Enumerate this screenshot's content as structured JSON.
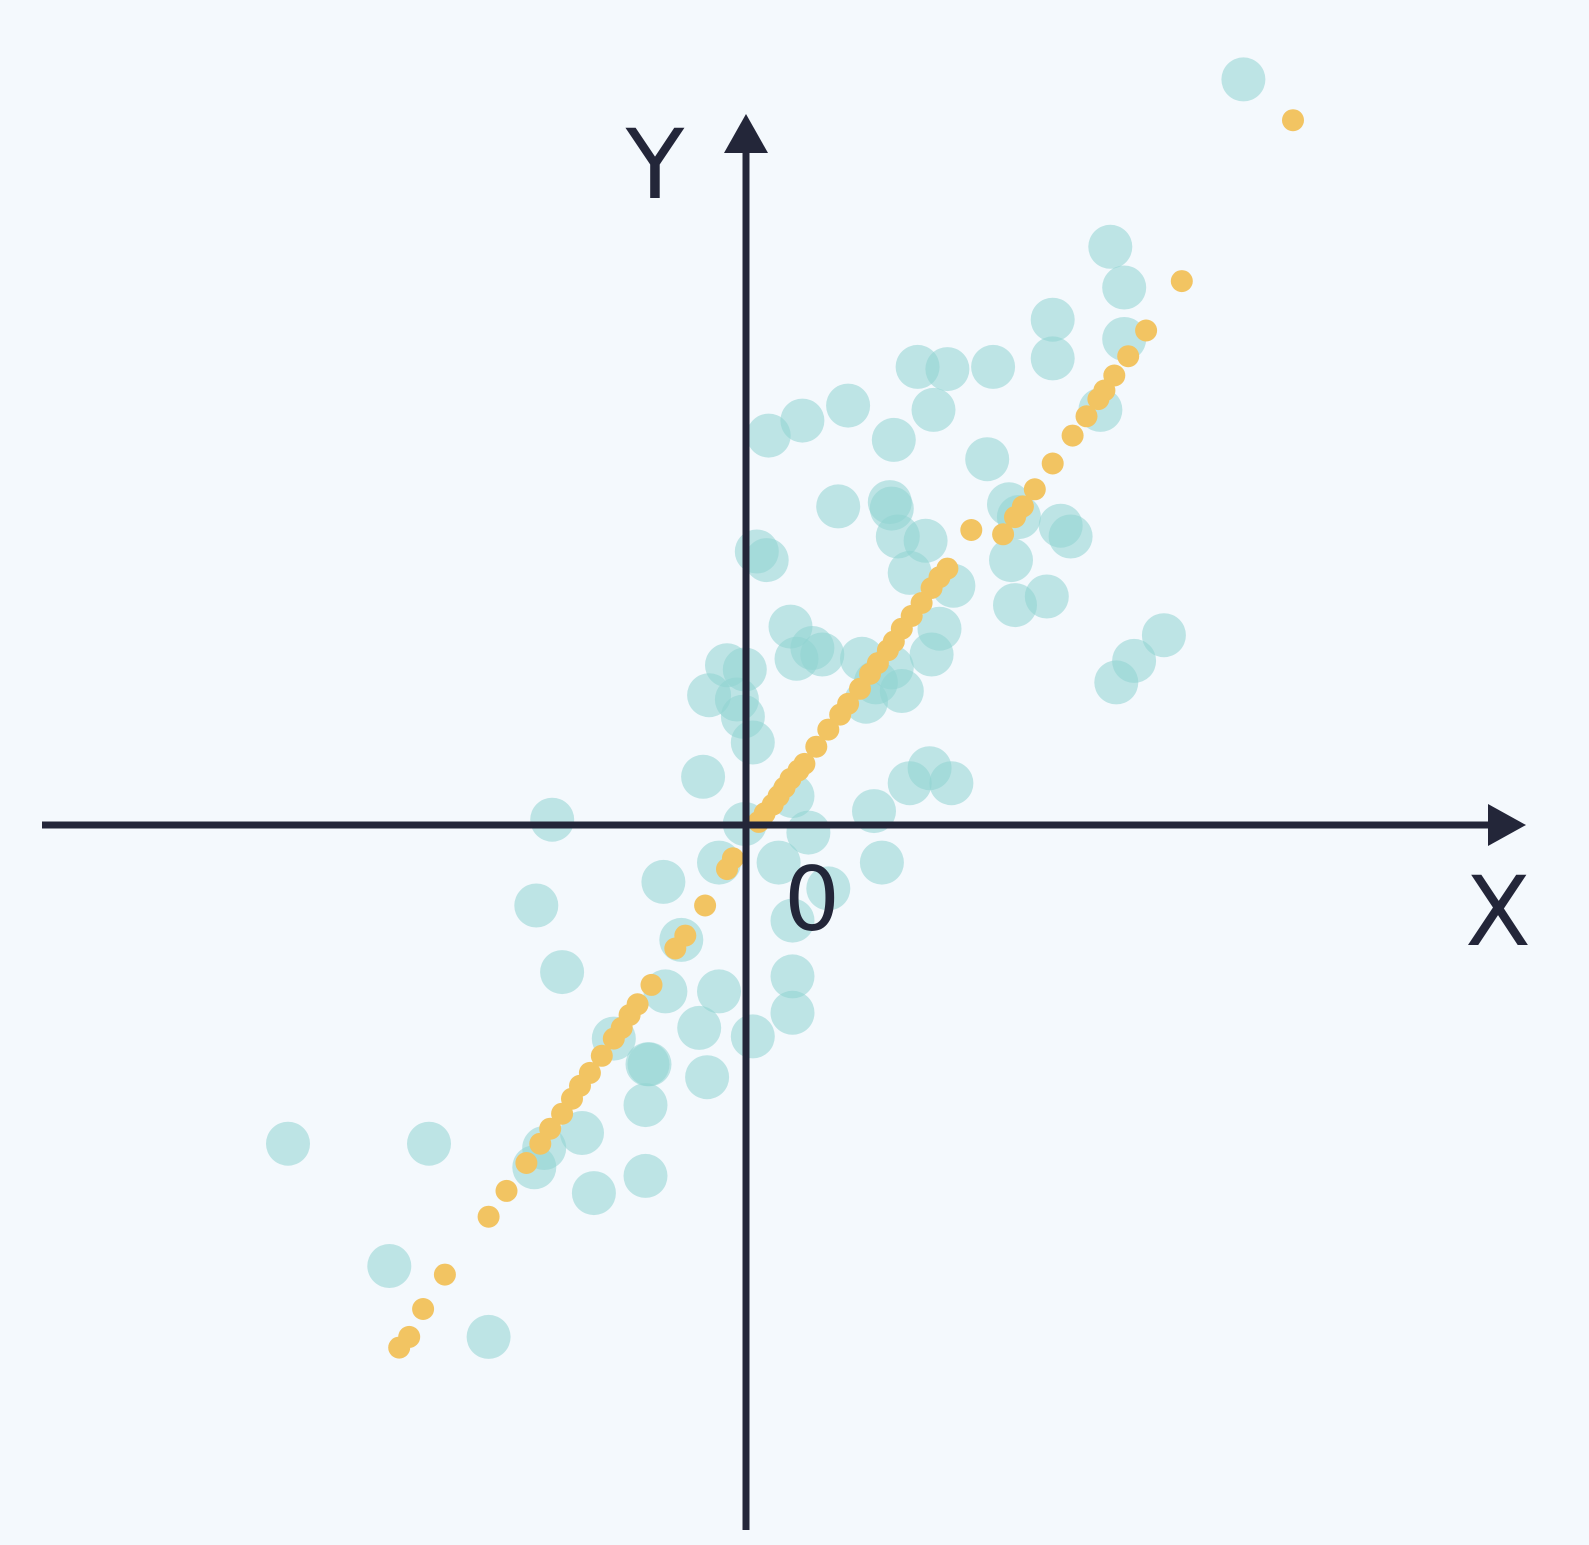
{
  "chart_data": {
    "type": "scatter",
    "xlabel": "X",
    "ylabel": "Y",
    "origin_label": "0",
    "xlim": [
      -3.95,
      4.05
    ],
    "ylim": [
      -3.55,
      3.65
    ],
    "grid": false,
    "legend": "none",
    "colors": {
      "background": "#f4f9fd",
      "axis": "#232639",
      "series_raw": "#8fd3d1",
      "series_projected": "#f2c462"
    },
    "series": [
      {
        "points": [
          [
            2.31,
            3.28
          ],
          [
            -2.5,
            -1.68
          ],
          [
            -1.79,
            -1.68
          ],
          [
            -1.49,
            -2.58
          ],
          [
            -1.99,
            -2.25
          ],
          [
            1.64,
            2.5
          ],
          [
            1.71,
            2.31
          ],
          [
            1.35,
            2.16
          ],
          [
            1.71,
            2.07
          ],
          [
            1.05,
            1.94
          ],
          [
            1.35,
            1.98
          ],
          [
            0.67,
            1.94
          ],
          [
            0.75,
            1.74
          ],
          [
            0.53,
            1.31
          ],
          [
            0.27,
            1.29
          ],
          [
            -0.09,
            1.04
          ],
          [
            -0.14,
            1.08
          ],
          [
            0.03,
            0.73
          ],
          [
            0.54,
            1.28
          ],
          [
            0.57,
            1.15
          ],
          [
            0.71,
            1.13
          ],
          [
            1.13,
            1.3
          ],
          [
            1.39,
            1.2
          ],
          [
            0.63,
            0.98
          ],
          [
            1.32,
            0.87
          ],
          [
            1.14,
            1.04
          ],
          [
            1.16,
            0.83
          ],
          [
            0.85,
            0.92
          ],
          [
            0.78,
            0.72
          ],
          [
            0.74,
            0.6
          ],
          [
            0.39,
            0.58
          ],
          [
            0.14,
            0.63
          ],
          [
            0.19,
            0.6
          ],
          [
            -0.29,
            0.55
          ],
          [
            -0.2,
            0.53
          ],
          [
            0.54,
            0.54
          ],
          [
            0.46,
            0.47
          ],
          [
            0.59,
            0.43
          ],
          [
            0.41,
            0.38
          ],
          [
            1.02,
            1.51
          ],
          [
            1.18,
            1.24
          ],
          [
            0.55,
            1.6
          ],
          [
            0.32,
            1.76
          ],
          [
            0.09,
            1.69
          ],
          [
            -0.08,
            1.62
          ],
          [
            0.82,
            1.93
          ],
          [
            1.59,
            1.74
          ],
          [
            -0.38,
            0.41
          ],
          [
            -0.24,
            0.39
          ],
          [
            -0.21,
            0.31
          ],
          [
            -0.16,
            0.19
          ],
          [
            -0.41,
            0.03
          ],
          [
            0.73,
            0.07
          ],
          [
            0.63,
            0.0
          ],
          [
            0.84,
            0.0
          ],
          [
            0.04,
            -0.06
          ],
          [
            0.45,
            -0.13
          ],
          [
            0.12,
            -0.23
          ],
          [
            -0.2,
            -0.19
          ],
          [
            -0.33,
            -0.37
          ],
          [
            -0.03,
            -0.37
          ],
          [
            0.22,
            -0.49
          ],
          [
            0.49,
            -0.37
          ],
          [
            0.04,
            -0.64
          ],
          [
            -0.61,
            -0.46
          ],
          [
            -0.52,
            -0.73
          ],
          [
            -1.17,
            -0.17
          ],
          [
            -1.25,
            -0.57
          ],
          [
            -1.12,
            -0.88
          ],
          [
            -0.6,
            -0.97
          ],
          [
            -0.33,
            -0.97
          ],
          [
            -0.43,
            -1.14
          ],
          [
            -0.16,
            -1.18
          ],
          [
            -0.68,
            -1.31
          ],
          [
            -0.39,
            -1.37
          ],
          [
            0.04,
            -0.9
          ],
          [
            0.04,
            -1.07
          ],
          [
            -0.86,
            -1.19
          ],
          [
            -0.69,
            -1.31
          ],
          [
            -1.02,
            -1.63
          ],
          [
            -0.7,
            -1.83
          ],
          [
            -1.26,
            -1.79
          ],
          [
            -0.96,
            -1.91
          ],
          [
            -1.21,
            -1.7
          ],
          [
            -0.7,
            -1.5
          ],
          [
            1.44,
            1.15
          ],
          [
            1.67,
            0.47
          ],
          [
            1.76,
            0.57
          ],
          [
            1.91,
            0.69
          ],
          [
            0.06,
            0.58
          ]
        ]
      },
      {
        "points": [
          [
            2.56,
            3.09
          ],
          [
            2.0,
            2.34
          ],
          [
            1.82,
            2.11
          ],
          [
            1.73,
            1.99
          ],
          [
            1.66,
            1.9
          ],
          [
            1.61,
            1.83
          ],
          [
            1.58,
            1.79
          ],
          [
            1.52,
            1.71
          ],
          [
            1.45,
            1.62
          ],
          [
            1.35,
            1.49
          ],
          [
            1.26,
            1.37
          ],
          [
            1.2,
            1.29
          ],
          [
            1.16,
            1.24
          ],
          [
            1.1,
            1.16
          ],
          [
            0.94,
            1.18
          ],
          [
            0.82,
            1.0
          ],
          [
            0.78,
            0.96
          ],
          [
            0.74,
            0.91
          ],
          [
            0.69,
            0.84
          ],
          [
            0.64,
            0.78
          ],
          [
            0.59,
            0.72
          ],
          [
            0.55,
            0.66
          ],
          [
            0.52,
            0.62
          ],
          [
            0.47,
            0.56
          ],
          [
            0.43,
            0.51
          ],
          [
            0.38,
            0.44
          ],
          [
            0.32,
            0.37
          ],
          [
            0.28,
            0.32
          ],
          [
            0.22,
            0.25
          ],
          [
            0.16,
            0.17
          ],
          [
            0.1,
            0.09
          ],
          [
            0.07,
            0.06
          ],
          [
            0.03,
            0.02
          ],
          [
            0.0,
            -0.02
          ],
          [
            -0.03,
            -0.06
          ],
          [
            -0.06,
            -0.1
          ],
          [
            -0.1,
            -0.14
          ],
          [
            -0.13,
            -0.18
          ],
          [
            -0.26,
            -0.35
          ],
          [
            -0.29,
            -0.4
          ],
          [
            -0.4,
            -0.57
          ],
          [
            -0.5,
            -0.71
          ],
          [
            -0.55,
            -0.77
          ],
          [
            -0.67,
            -0.94
          ],
          [
            -0.74,
            -1.03
          ],
          [
            -0.78,
            -1.08
          ],
          [
            -0.82,
            -1.14
          ],
          [
            -0.86,
            -1.19
          ],
          [
            -0.92,
            -1.27
          ],
          [
            -0.98,
            -1.35
          ],
          [
            -1.03,
            -1.41
          ],
          [
            -1.07,
            -1.47
          ],
          [
            -1.12,
            -1.54
          ],
          [
            -1.18,
            -1.61
          ],
          [
            -1.23,
            -1.68
          ],
          [
            -1.3,
            -1.77
          ],
          [
            -1.4,
            -1.9
          ],
          [
            -1.49,
            -2.02
          ],
          [
            -1.71,
            -2.29
          ],
          [
            -1.82,
            -2.45
          ],
          [
            -1.89,
            -2.58
          ],
          [
            -1.94,
            -2.63
          ]
        ]
      }
    ]
  }
}
